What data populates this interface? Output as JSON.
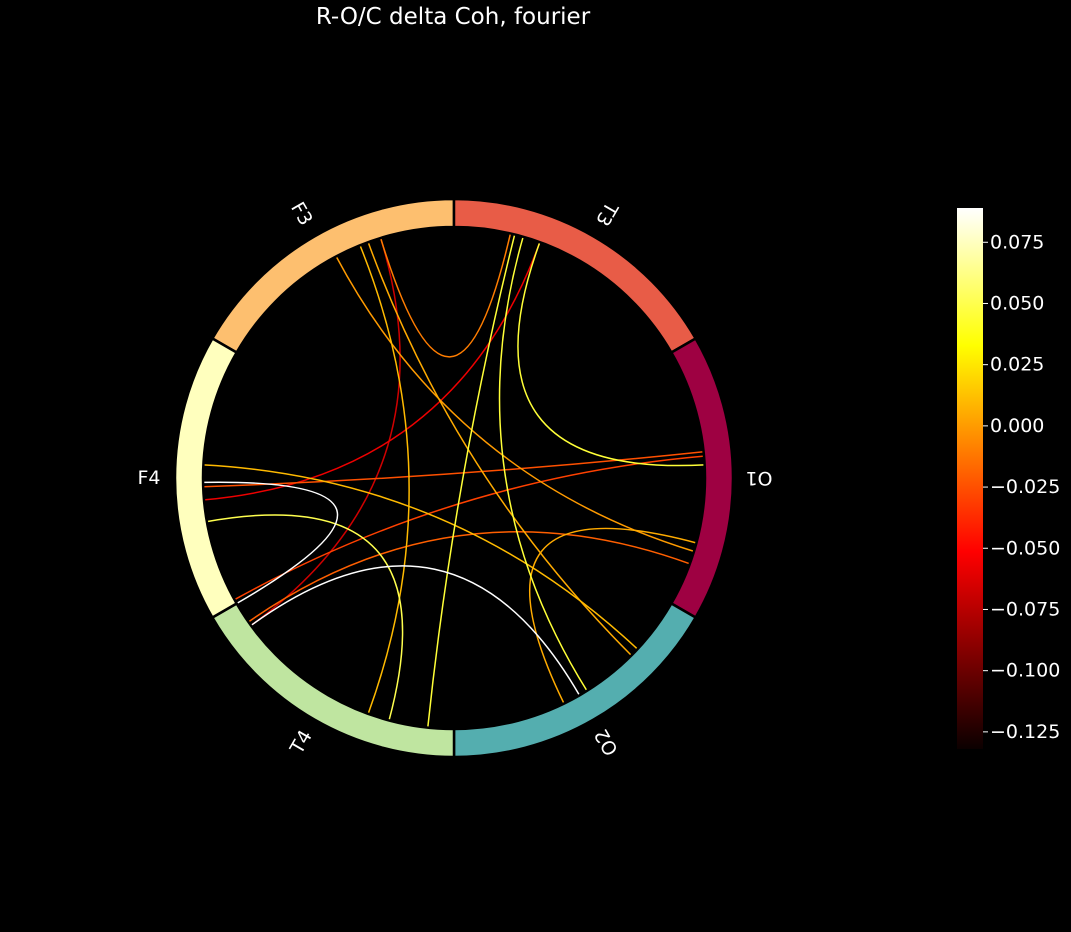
{
  "chart_data": {
    "type": "circular-connectivity",
    "title": "R-O/C delta Coh, fourier",
    "nodes": [
      {
        "label": "F3",
        "color": "#fdbf6f",
        "start_deg": 90,
        "end_deg": 150
      },
      {
        "label": "T3",
        "color": "#e85c47",
        "start_deg": 30,
        "end_deg": 90
      },
      {
        "label": "O1",
        "color": "#9e0142",
        "start_deg": -30,
        "end_deg": 30
      },
      {
        "label": "O2",
        "color": "#54aeaf",
        "start_deg": -90,
        "end_deg": -30
      },
      {
        "label": "T4",
        "color": "#bfe5a0",
        "start_deg": 210,
        "end_deg": 270
      },
      {
        "label": "F4",
        "color": "#ffffbe",
        "start_deg": 150,
        "end_deg": 210
      }
    ],
    "connections": [
      {
        "a": 107,
        "b": 77,
        "value": -0.01
      },
      {
        "a": 107,
        "b": 216,
        "value": -0.07
      },
      {
        "a": 118,
        "b": 343,
        "value": 0.0
      },
      {
        "a": 112,
        "b": 250,
        "value": 0.01
      },
      {
        "a": 110,
        "b": 315,
        "value": 0.005
      },
      {
        "a": 70,
        "b": 185,
        "value": -0.06
      },
      {
        "a": 76,
        "b": 264,
        "value": 0.045
      },
      {
        "a": 70,
        "b": 3,
        "value": 0.045
      },
      {
        "a": 74,
        "b": 302,
        "value": 0.045
      },
      {
        "a": 182,
        "b": 6,
        "value": -0.025
      },
      {
        "a": 181,
        "b": 210,
        "value": 0.089
      },
      {
        "a": 177,
        "b": 317,
        "value": 0.01
      },
      {
        "a": 190,
        "b": 255,
        "value": 0.05
      },
      {
        "a": 209,
        "b": 5,
        "value": -0.03
      },
      {
        "a": 215,
        "b": 340,
        "value": -0.02
      },
      {
        "a": 216,
        "b": 300,
        "value": 0.089
      },
      {
        "a": 296,
        "b": 345,
        "value": 0.005
      }
    ],
    "colorbar": {
      "colormap": "hot",
      "vmin": -0.132,
      "vmax": 0.089,
      "ticks": [
        "0.075",
        "0.050",
        "0.025",
        "0.000",
        "−0.025",
        "−0.050",
        "−0.075",
        "−0.100",
        "−0.125"
      ],
      "tick_values": [
        0.075,
        0.05,
        0.025,
        0.0,
        -0.025,
        -0.05,
        -0.075,
        -0.1,
        -0.125
      ]
    }
  }
}
